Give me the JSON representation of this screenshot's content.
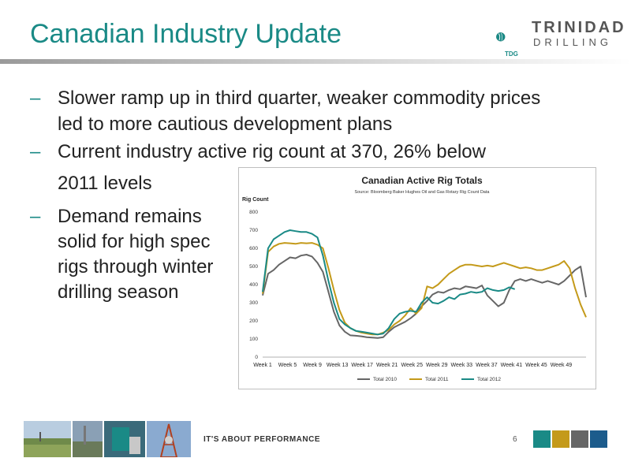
{
  "slide": {
    "title": "Canadian Industry Update",
    "logo_line1": "TRINIDAD",
    "logo_line2": "DRILLING",
    "logo_badge": "TDG",
    "bullets": [
      [
        "Slower ramp up in third quarter, weaker commodity prices",
        "led to more cautious development plans"
      ],
      [
        "Current industry active rig count at 370, 26% below",
        "2011 levels"
      ],
      [
        "Demand remains",
        "solid for high spec",
        "rigs through winter",
        "drilling season"
      ]
    ],
    "bullet_marker": "–",
    "footer_text": "IT'S ABOUT PERFORMANCE",
    "page_number": "6",
    "footer_colors": [
      "#1a8a86",
      "#c49a1a",
      "#666666",
      "#1c5c8c"
    ]
  },
  "chart_data": {
    "type": "line",
    "title": "Canadian Active Rig Totals",
    "subtitle": "Source: Bloomberg Baker Hughes Oil and Gas Rotary Rig Count Data",
    "ylabel": "Rig Count",
    "ylim": [
      0,
      800
    ],
    "yticks": [
      0,
      100,
      200,
      300,
      400,
      500,
      600,
      700,
      800
    ],
    "xticks": [
      "Week 1",
      "Week 5",
      "Week 9",
      "Week 13",
      "Week 17",
      "Week 21",
      "Week 25",
      "Week 29",
      "Week 33",
      "Week 37",
      "Week 41",
      "Week 45",
      "Week 49"
    ],
    "xrange": [
      1,
      53
    ],
    "legend_position": "bottom",
    "series": [
      {
        "name": "Total 2010",
        "color": "#666666",
        "values": [
          340,
          460,
          480,
          510,
          530,
          550,
          545,
          560,
          565,
          555,
          520,
          470,
          360,
          250,
          175,
          140,
          120,
          118,
          115,
          110,
          108,
          105,
          110,
          140,
          165,
          180,
          195,
          215,
          240,
          280,
          310,
          345,
          360,
          355,
          370,
          380,
          375,
          390,
          385,
          380,
          395,
          340,
          310,
          280,
          300,
          370,
          420,
          430,
          420,
          430,
          420,
          410,
          420,
          410,
          400,
          420,
          450,
          480,
          500,
          330
        ]
      },
      {
        "name": "Total 2011",
        "color": "#c49a1a",
        "values": [
          350,
          580,
          610,
          625,
          630,
          628,
          625,
          630,
          628,
          630,
          620,
          600,
          490,
          370,
          260,
          190,
          160,
          145,
          135,
          130,
          125,
          125,
          135,
          150,
          180,
          200,
          230,
          270,
          240,
          270,
          390,
          380,
          400,
          430,
          460,
          480,
          500,
          510,
          510,
          505,
          500,
          505,
          500,
          510,
          520,
          510,
          500,
          490,
          495,
          490,
          480,
          480,
          490,
          500,
          510,
          530,
          490,
          380,
          290,
          220
        ]
      },
      {
        "name": "Total 2012",
        "color": "#1a8a86",
        "values": [
          360,
          600,
          650,
          670,
          690,
          700,
          695,
          690,
          690,
          680,
          660,
          560,
          420,
          300,
          210,
          180,
          160,
          145,
          140,
          135,
          130,
          125,
          130,
          160,
          210,
          240,
          250,
          255,
          250,
          300,
          330,
          300,
          295,
          310,
          330,
          320,
          345,
          350,
          360,
          355,
          360,
          380,
          370,
          365,
          370,
          385,
          375
        ]
      }
    ]
  }
}
